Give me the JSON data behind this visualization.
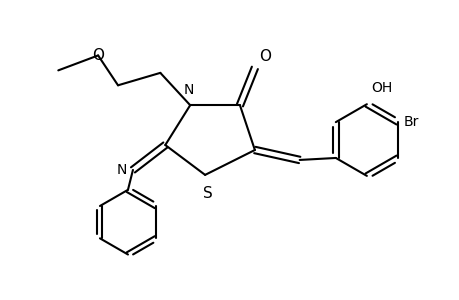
{
  "background_color": "#ffffff",
  "line_color": "#000000",
  "lw": 1.5,
  "fs": 10,
  "figsize": [
    4.6,
    3.0
  ],
  "dpi": 100,
  "xlim": [
    0,
    9.2
  ],
  "ylim": [
    0,
    6.0
  ]
}
